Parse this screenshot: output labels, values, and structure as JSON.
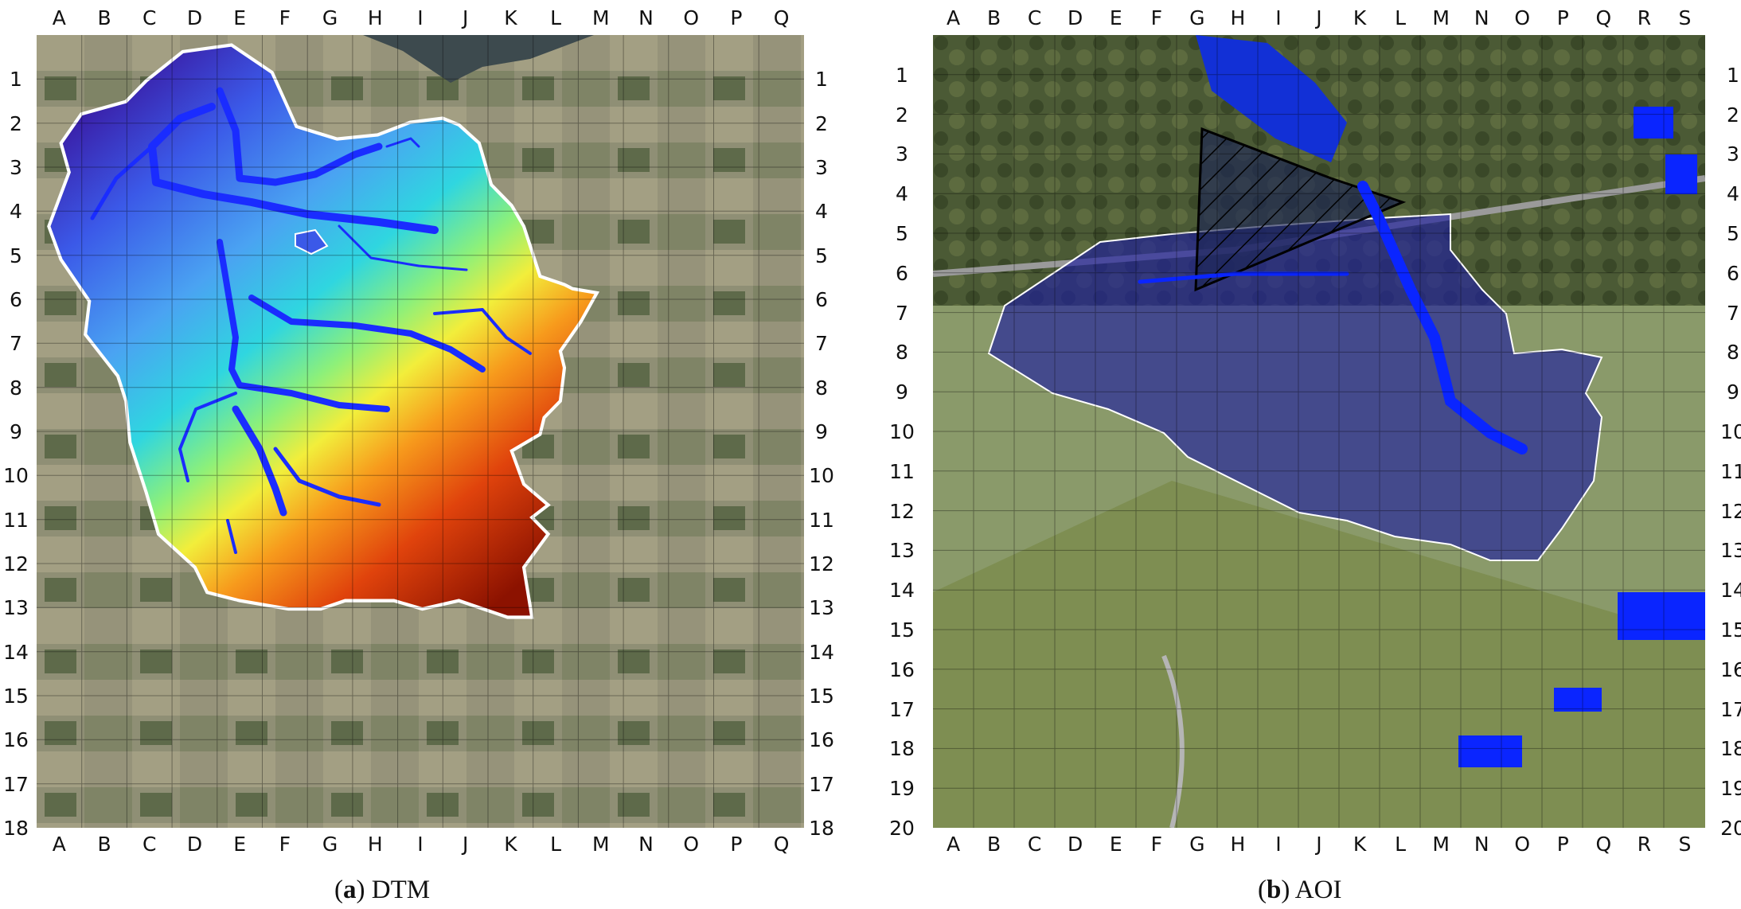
{
  "panels": [
    {
      "id": "a",
      "caption_letter": "a",
      "caption_title": "DTM",
      "columns": [
        "A",
        "B",
        "C",
        "D",
        "E",
        "F",
        "G",
        "H",
        "I",
        "J",
        "K",
        "L",
        "M",
        "N",
        "O",
        "P",
        "Q"
      ],
      "rows": [
        "1",
        "2",
        "3",
        "4",
        "5",
        "6",
        "7",
        "8",
        "9",
        "10",
        "11",
        "12",
        "13",
        "14",
        "15",
        "16",
        "17",
        "18"
      ],
      "layers": [
        "aerial-imagery",
        "elevation-model",
        "stream-network",
        "catchment-boundary"
      ],
      "colors": {
        "low": "#3a1fa8",
        "mid": "#2fd6e0",
        "high": "#8c1200",
        "streams": "#1a2cff",
        "boundary": "#ffffff"
      }
    },
    {
      "id": "b",
      "caption_letter": "b",
      "caption_title": "AOI",
      "columns": [
        "A",
        "B",
        "C",
        "D",
        "E",
        "F",
        "G",
        "H",
        "I",
        "J",
        "K",
        "L",
        "M",
        "N",
        "O",
        "P",
        "Q",
        "R",
        "S"
      ],
      "rows": [
        "1",
        "2",
        "3",
        "4",
        "5",
        "6",
        "7",
        "8",
        "9",
        "10",
        "11",
        "12",
        "13",
        "14",
        "15",
        "16",
        "17",
        "18",
        "19",
        "20"
      ],
      "layers": [
        "aerial-imagery",
        "area-of-interest",
        "flood-extent",
        "hatched-zone"
      ],
      "colors": {
        "aoi_fill": "#1e1e9e",
        "flood": "#0a25ff",
        "hatch": "#000000",
        "field": "#7e8e52"
      }
    }
  ]
}
